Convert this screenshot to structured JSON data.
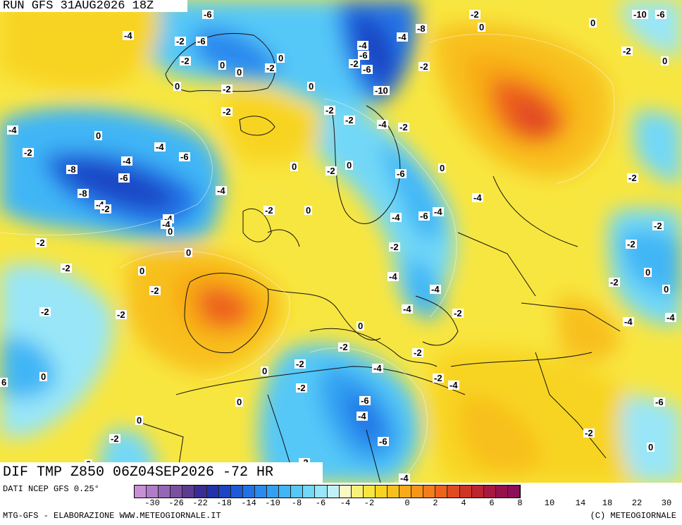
{
  "header": {
    "run_title": "RUN GFS 31AUG2026 18Z",
    "product_title": "DIF TMP Z850 06Z04SEP2026 -72 HR"
  },
  "footer": {
    "data_source": "DATI NCEP GFS 0.25°",
    "credit_left": "MTG-GFS - ELABORAZIONE WWW.METEOGIORNALE.IT",
    "credit_right": "(C) METEOGIORNALE"
  },
  "colorbar": {
    "colors": [
      "#c98fd6",
      "#b07cc8",
      "#9566b5",
      "#7a4fa0",
      "#5c3b92",
      "#3a2c96",
      "#2232a8",
      "#1a45c4",
      "#1e5ad8",
      "#2272e6",
      "#2a8aee",
      "#33a1f2",
      "#40b6f6",
      "#55c8f8",
      "#72d8f8",
      "#98e6f8",
      "#c2f0f8",
      "#f8f8c0",
      "#f8f07a",
      "#f8e640",
      "#f8d420",
      "#f8c01a",
      "#f8aa18",
      "#f89418",
      "#f47c1a",
      "#ee621c",
      "#e04a20",
      "#d03424",
      "#bc2430",
      "#a8183c",
      "#96104a",
      "#8c0e58"
    ],
    "tick_labels": [
      "-30",
      "-26",
      "-22",
      "-18",
      "-14",
      "-10",
      "-8",
      "-6",
      "-4",
      "-2",
      "0",
      "2",
      "4",
      "6",
      "8",
      "10",
      "14",
      "18",
      "22",
      "30"
    ]
  },
  "map_labels": [
    "-6",
    "-10",
    "-6",
    "-2",
    "0",
    "0",
    "-4",
    "-2",
    "-6",
    "-8",
    "-2",
    "-4",
    "0",
    "-2",
    "0",
    "-4",
    "0",
    "-2",
    "-2",
    "-6",
    "-6",
    "-10",
    "-2",
    "-2",
    "0",
    "0",
    "0",
    "-2",
    "-2",
    "-4",
    "-2",
    "-4",
    "-2",
    "0",
    "0",
    "-2",
    "-4",
    "-4",
    "-6",
    "-8",
    "-6",
    "-4",
    "-8",
    "-4",
    "-2",
    "-4",
    "-2",
    "-4",
    "-2",
    "0",
    "0",
    "-6",
    "-4",
    "-6",
    "0",
    "-2",
    "-2",
    "-4",
    "-4",
    "0",
    "-2",
    "-2",
    "0",
    "-2",
    "-2",
    "0",
    "0",
    "-4",
    "-2",
    "-4",
    "-2",
    "0",
    "-2",
    "-4",
    "-2",
    "0",
    "-2",
    "-4",
    "-2",
    "-4",
    "-2",
    "-2",
    "0",
    "-4",
    "0",
    "-2",
    "-2",
    "-4",
    "-6",
    "-4",
    "-6",
    "-6",
    "-2",
    "0",
    "0",
    "0",
    "-2",
    "-2",
    "0",
    "-4",
    "6"
  ]
}
